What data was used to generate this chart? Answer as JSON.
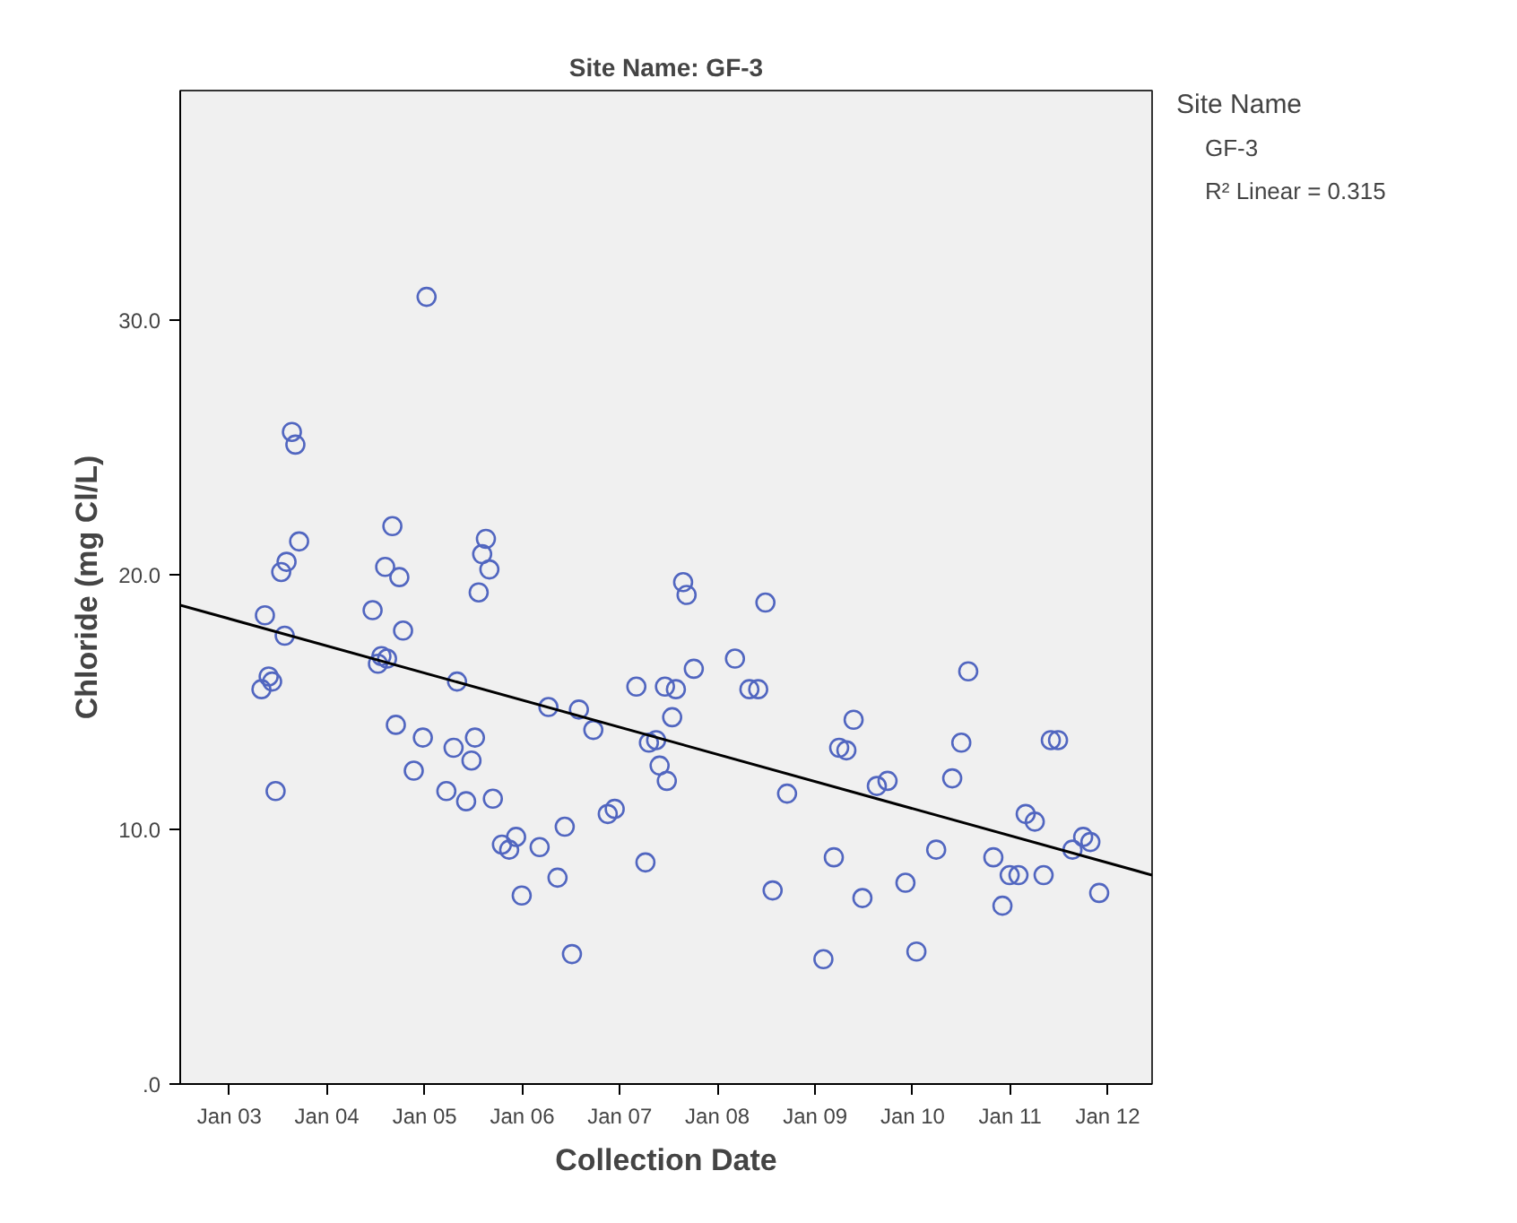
{
  "chart_data": {
    "type": "scatter",
    "title": "Site Name: GF-3",
    "xlabel": "Collection Date",
    "ylabel": "Chloride (mg Cl/L)",
    "legend_title": "Site Name",
    "legend": "right",
    "grid": false,
    "annotations": [
      "R² Linear = 0.315"
    ],
    "xlim": [
      "2002-07-01",
      "2012-06-15"
    ],
    "ylim": [
      0,
      39
    ],
    "xticks": [
      {
        "value": "2003-01-01",
        "label": "Jan 03"
      },
      {
        "value": "2004-01-01",
        "label": "Jan 04"
      },
      {
        "value": "2005-01-01",
        "label": "Jan 05"
      },
      {
        "value": "2006-01-01",
        "label": "Jan 06"
      },
      {
        "value": "2007-01-01",
        "label": "Jan 07"
      },
      {
        "value": "2008-01-01",
        "label": "Jan 08"
      },
      {
        "value": "2009-01-01",
        "label": "Jan 09"
      },
      {
        "value": "2010-01-01",
        "label": "Jan 10"
      },
      {
        "value": "2011-01-01",
        "label": "Jan 11"
      },
      {
        "value": "2012-01-01",
        "label": "Jan 12"
      }
    ],
    "yticks": [
      {
        "value": 0,
        "label": ".0"
      },
      {
        "value": 10,
        "label": "10.0"
      },
      {
        "value": 20,
        "label": "20.0"
      },
      {
        "value": 30,
        "label": "30.0"
      }
    ],
    "series": [
      {
        "name": "GF-3",
        "marker": "circle",
        "color": "#5166c0",
        "x": [
          "2003-05-01",
          "2003-05-14",
          "2003-05-28",
          "2003-06-10",
          "2003-06-23",
          "2003-07-14",
          "2003-08-03",
          "2003-07-27",
          "2003-08-23",
          "2003-09-05",
          "2003-09-19",
          "2004-06-20",
          "2004-07-10",
          "2004-07-23",
          "2004-08-06",
          "2004-08-13",
          "2004-09-02",
          "2004-09-15",
          "2004-09-28",
          "2004-10-12",
          "2004-11-21",
          "2004-12-25",
          "2005-01-08",
          "2005-03-23",
          "2005-04-19",
          "2005-05-02",
          "2005-06-05",
          "2005-06-25",
          "2005-07-08",
          "2005-07-22",
          "2005-08-04",
          "2005-08-18",
          "2005-08-31",
          "2005-09-13",
          "2005-10-17",
          "2005-11-13",
          "2005-12-09",
          "2005-12-30",
          "2006-03-07",
          "2006-04-09",
          "2006-05-13",
          "2006-06-09",
          "2006-07-06",
          "2006-08-01",
          "2006-09-24",
          "2006-11-17",
          "2006-12-13",
          "2007-03-04",
          "2007-04-07",
          "2007-04-20",
          "2007-05-17",
          "2007-05-30",
          "2007-06-19",
          "2007-06-26",
          "2007-07-16",
          "2007-07-30",
          "2007-08-26",
          "2007-09-08",
          "2007-10-05",
          "2008-03-07",
          "2008-04-30",
          "2008-06-02",
          "2008-06-29",
          "2008-07-26",
          "2008-09-18",
          "2009-02-01",
          "2009-03-12",
          "2009-04-01",
          "2009-04-28",
          "2009-05-25",
          "2009-06-27",
          "2009-08-20",
          "2009-09-29",
          "2009-12-05",
          "2010-01-15",
          "2010-03-30",
          "2010-05-29",
          "2010-07-02",
          "2010-07-28",
          "2010-10-30",
          "2010-12-03",
          "2010-12-30",
          "2011-02-01",
          "2011-02-28",
          "2011-04-03",
          "2011-05-06",
          "2011-06-02",
          "2011-06-29",
          "2011-08-22",
          "2011-10-01",
          "2011-10-28",
          "2011-11-30"
        ],
        "values": [
          15.5,
          18.4,
          16.0,
          15.8,
          11.5,
          20.1,
          20.5,
          17.6,
          25.6,
          25.1,
          21.3,
          18.6,
          16.5,
          16.8,
          20.3,
          16.7,
          21.9,
          14.1,
          19.9,
          17.8,
          12.3,
          13.6,
          30.9,
          11.5,
          13.2,
          15.8,
          11.1,
          12.7,
          13.6,
          19.3,
          20.8,
          21.4,
          20.2,
          11.2,
          9.4,
          9.2,
          9.7,
          7.4,
          9.3,
          14.8,
          8.1,
          10.1,
          5.1,
          14.7,
          13.9,
          10.6,
          10.8,
          15.6,
          8.7,
          13.4,
          13.5,
          12.5,
          15.6,
          11.9,
          14.4,
          15.5,
          19.7,
          19.2,
          16.3,
          16.7,
          15.5,
          15.5,
          18.9,
          7.6,
          11.4,
          4.9,
          8.9,
          13.2,
          13.1,
          14.3,
          7.3,
          11.7,
          11.9,
          7.9,
          5.2,
          9.2,
          12.0,
          13.4,
          16.2,
          8.9,
          7.0,
          8.2,
          8.2,
          10.6,
          10.3,
          8.2,
          13.5,
          13.5,
          9.2,
          9.7,
          9.5,
          7.5
        ]
      },
      {
        "type": "line",
        "color": "#000000",
        "x": [
          "2002-07-01",
          "2012-06-15"
        ],
        "values": [
          18.8,
          8.2
        ]
      }
    ]
  }
}
